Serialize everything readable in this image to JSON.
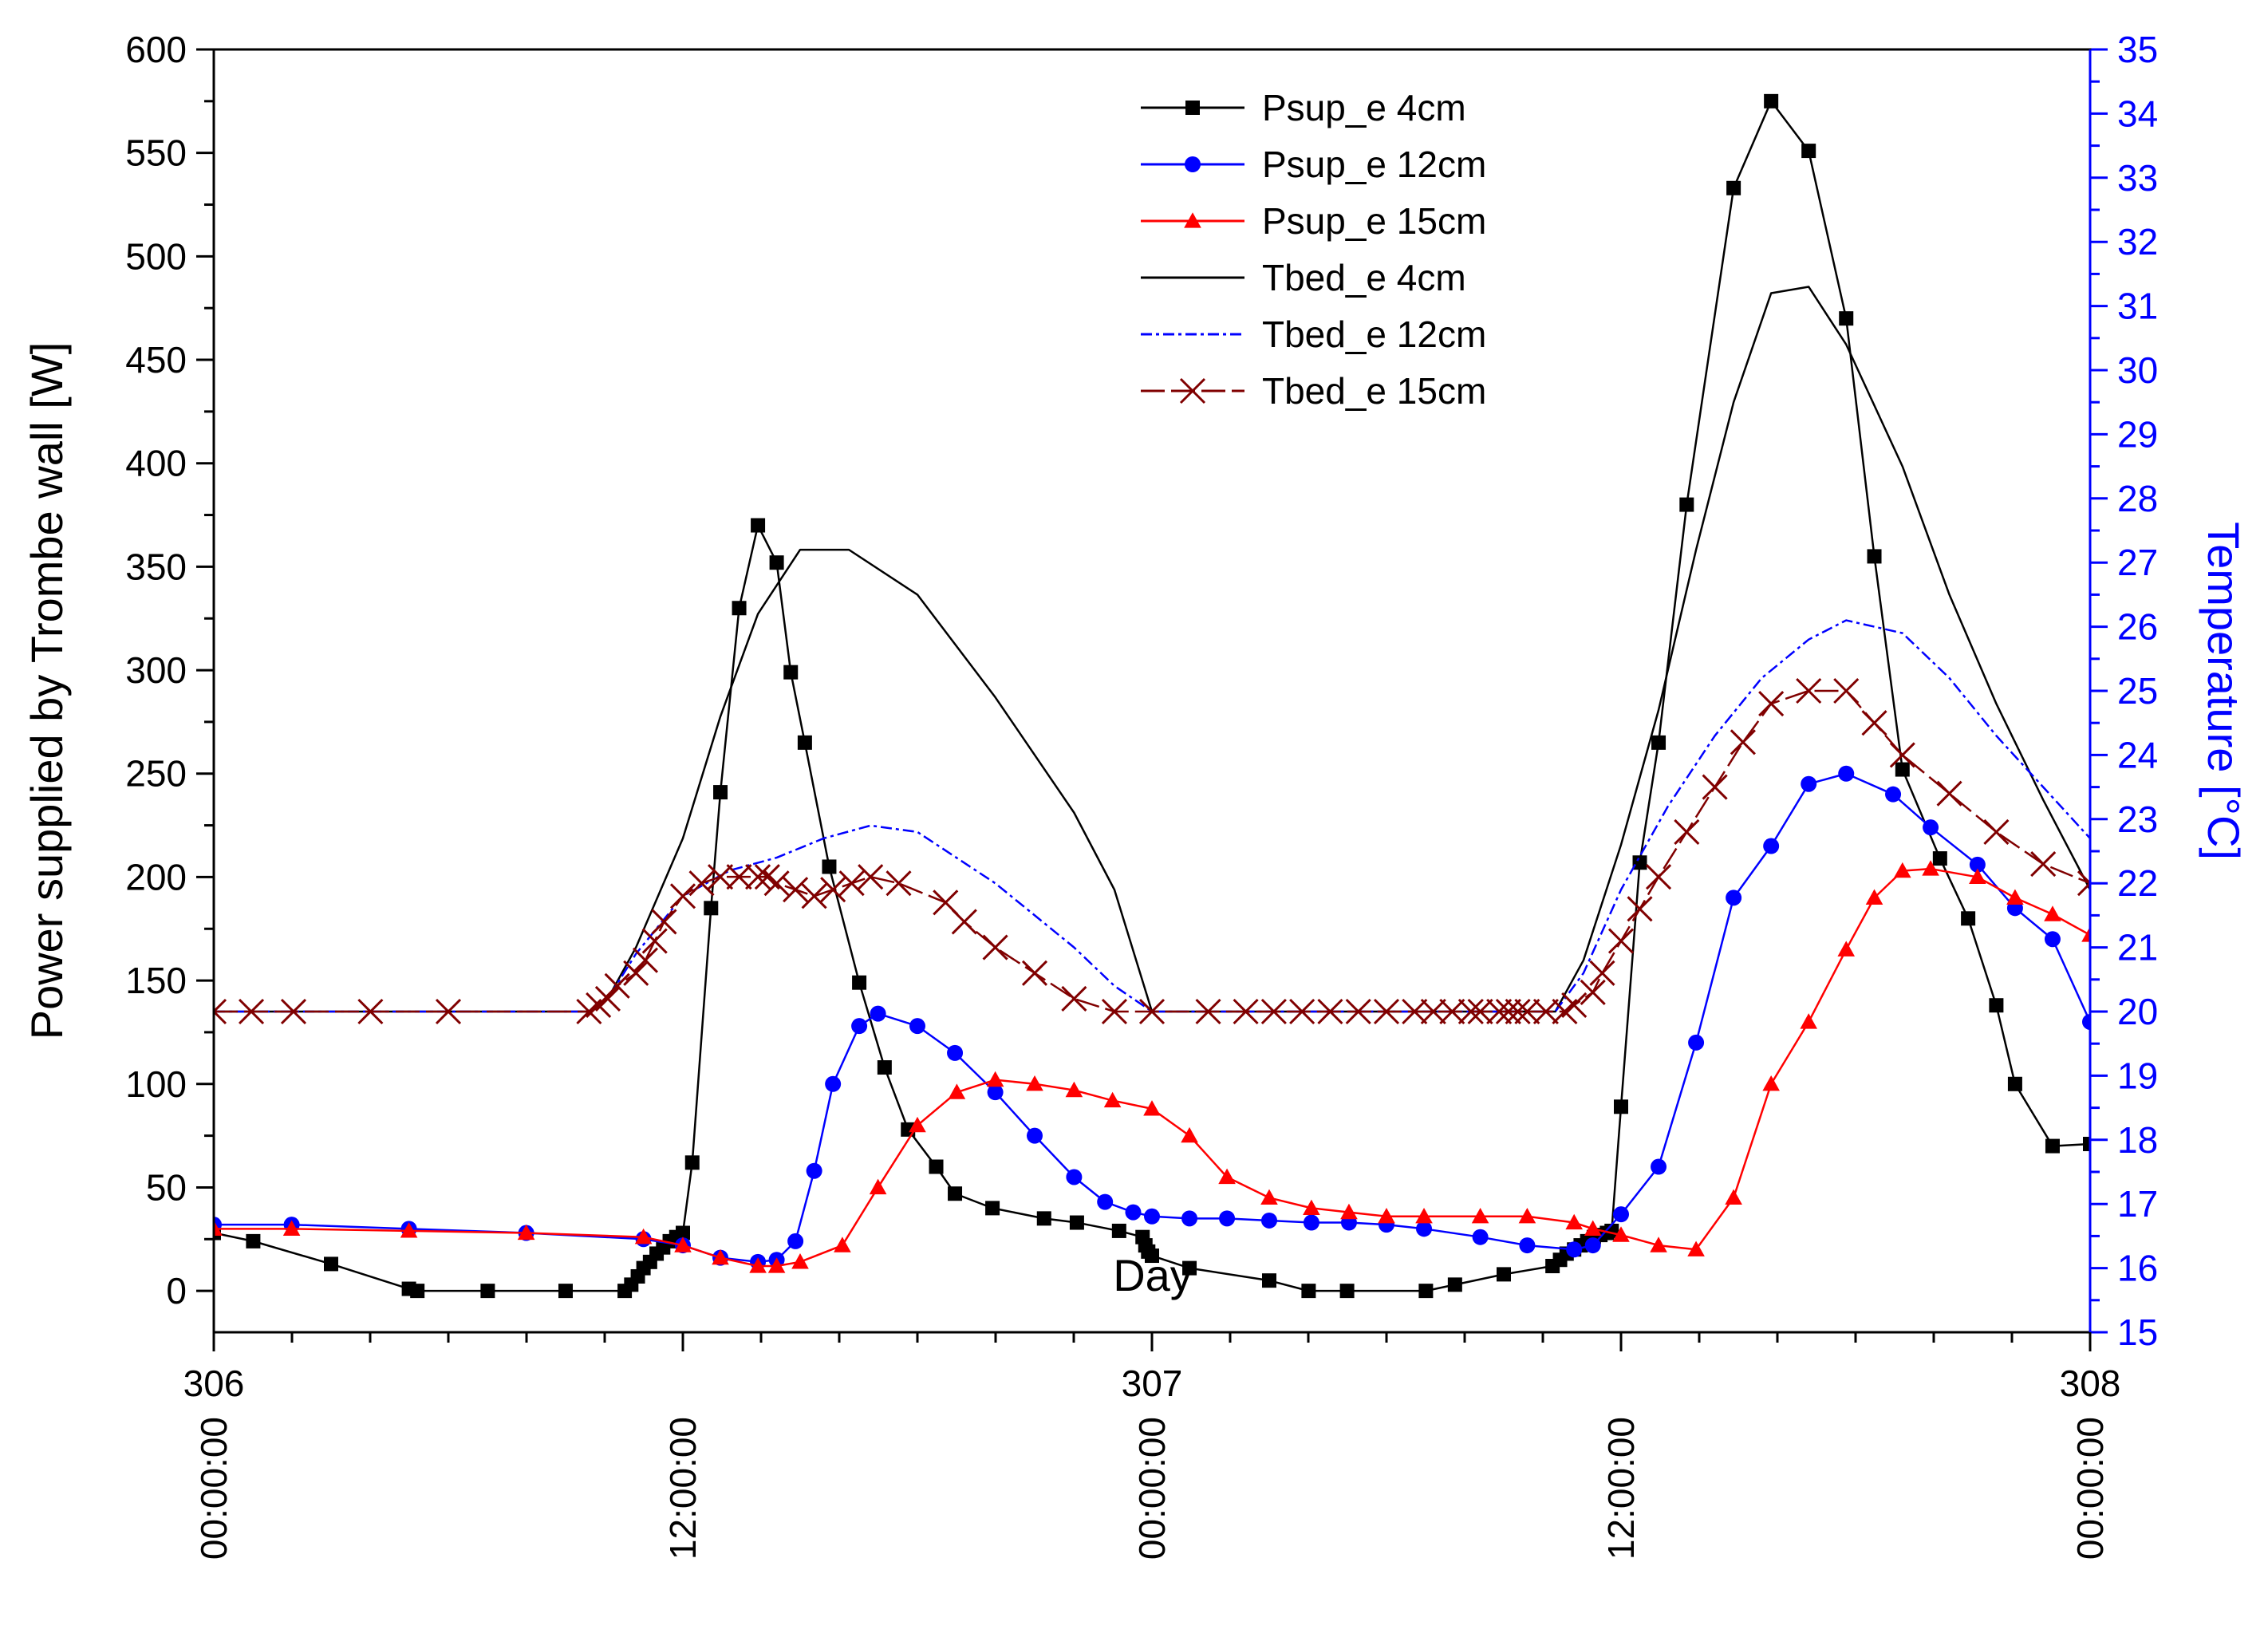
{
  "chart_data": {
    "type": "line",
    "xlabel": "Day",
    "ylabel": "Power supplied by Trombe wall [W]",
    "y2label": "Temperature [°C]",
    "xlim": [
      306,
      308
    ],
    "ylim": [
      -20,
      600
    ],
    "y2lim": [
      15,
      35
    ],
    "x_major_ticks": [
      {
        "value": 306,
        "day": "306",
        "time": "00:00:00"
      },
      {
        "value": 306.5,
        "day": "",
        "time": "12:00:00"
      },
      {
        "value": 307,
        "day": "307",
        "time": "00:00:00"
      },
      {
        "value": 307.5,
        "day": "",
        "time": "12:00:00"
      },
      {
        "value": 308,
        "day": "308",
        "time": "00:00:00"
      }
    ],
    "y_ticks": [
      0,
      50,
      100,
      150,
      200,
      250,
      300,
      350,
      400,
      450,
      500,
      550,
      600
    ],
    "y2_ticks": [
      15,
      16,
      17,
      18,
      19,
      20,
      21,
      22,
      23,
      24,
      25,
      26,
      27,
      28,
      29,
      30,
      31,
      32,
      33,
      34,
      35
    ],
    "colors": {
      "black": "#000000",
      "blue": "#0000ff",
      "red": "#ff0000",
      "darkred": "#800000",
      "axis2": "#0000ff"
    },
    "series": [
      {
        "name": "Psup_e 4cm",
        "axis": "left",
        "color": "#000000",
        "marker": "square",
        "dash": "",
        "x": [
          306.0,
          306.042,
          306.125,
          306.208,
          306.217,
          306.292,
          306.375,
          306.438,
          306.445,
          306.452,
          306.458,
          306.465,
          306.472,
          306.479,
          306.486,
          306.493,
          306.5,
          306.51,
          306.53,
          306.54,
          306.56,
          306.58,
          306.6,
          306.615,
          306.63,
          306.656,
          306.688,
          306.715,
          306.74,
          306.77,
          306.79,
          306.83,
          306.885,
          306.92,
          306.965,
          306.99,
          306.993,
          306.996,
          307.0,
          307.04,
          307.125,
          307.167,
          307.208,
          307.292,
          307.323,
          307.375,
          307.427,
          307.435,
          307.442,
          307.45,
          307.457,
          307.464,
          307.471,
          307.478,
          307.485,
          307.49,
          307.5,
          307.52,
          307.54,
          307.57,
          307.62,
          307.66,
          307.7,
          307.74,
          307.77,
          307.8,
          307.84,
          307.87,
          307.9,
          307.92,
          307.96,
          308.0
        ],
        "y": [
          28,
          24,
          13,
          1,
          0,
          0,
          0,
          0,
          3,
          7,
          11,
          14,
          18,
          21,
          24,
          26,
          28,
          62,
          185,
          241,
          330,
          370,
          352,
          299,
          265,
          205,
          149,
          108,
          78,
          60,
          47,
          40,
          35,
          33,
          29,
          26,
          22,
          19,
          17,
          11,
          5,
          0,
          0,
          0,
          3,
          8,
          12,
          15,
          18,
          20,
          22,
          24,
          26,
          27,
          28,
          29,
          89,
          207,
          265,
          380,
          533,
          575,
          551,
          470,
          355,
          252,
          209,
          180,
          138,
          100,
          70,
          71
        ]
      },
      {
        "name": "Psup_e 12cm",
        "axis": "left",
        "color": "#0000ff",
        "marker": "circle",
        "dash": "",
        "x": [
          306.0,
          306.083,
          306.208,
          306.333,
          306.458,
          306.5,
          306.54,
          306.58,
          306.6,
          306.62,
          306.64,
          306.66,
          306.688,
          306.708,
          306.75,
          306.79,
          306.833,
          306.875,
          306.917,
          306.95,
          306.98,
          307.0,
          307.04,
          307.08,
          307.125,
          307.17,
          307.21,
          307.25,
          307.29,
          307.35,
          307.4,
          307.45,
          307.47,
          307.5,
          307.54,
          307.58,
          307.62,
          307.66,
          307.7,
          307.74,
          307.79,
          307.83,
          307.88,
          307.92,
          307.96,
          308.0
        ],
        "y": [
          32,
          32,
          30,
          28,
          25,
          22,
          16,
          14,
          15,
          24,
          58,
          100,
          128,
          134,
          128,
          115,
          96,
          75,
          55,
          43,
          38,
          36,
          35,
          35,
          34,
          33,
          33,
          32,
          30,
          26,
          22,
          20,
          22,
          37,
          60,
          120,
          190,
          215,
          245,
          250,
          240,
          224,
          206,
          185,
          170,
          130
        ]
      },
      {
        "name": "Psup_e 15cm",
        "axis": "left",
        "color": "#ff0000",
        "marker": "triangle",
        "dash": "",
        "x": [
          306.0,
          306.083,
          306.208,
          306.333,
          306.458,
          306.5,
          306.54,
          306.58,
          306.6,
          306.625,
          306.67,
          306.708,
          306.75,
          306.792,
          306.833,
          306.875,
          306.917,
          306.958,
          307.0,
          307.04,
          307.08,
          307.125,
          307.17,
          307.21,
          307.25,
          307.29,
          307.35,
          307.4,
          307.45,
          307.47,
          307.5,
          307.54,
          307.58,
          307.62,
          307.66,
          307.7,
          307.74,
          307.77,
          307.8,
          307.83,
          307.88,
          307.92,
          307.96,
          308.0
        ],
        "y": [
          30,
          30,
          29,
          28,
          26,
          22,
          16,
          12,
          12,
          14,
          22,
          50,
          80,
          96,
          102,
          100,
          97,
          92,
          88,
          75,
          55,
          45,
          40,
          38,
          36,
          36,
          36,
          36,
          33,
          30,
          27,
          22,
          20,
          45,
          100,
          130,
          165,
          190,
          203,
          204,
          200,
          190,
          182,
          172
        ]
      },
      {
        "name": "Tbed_e 4cm",
        "axis": "right",
        "color": "#000000",
        "marker": "none",
        "dash": "",
        "x": [
          306.0,
          306.4,
          306.42,
          306.45,
          306.5,
          306.54,
          306.58,
          306.625,
          306.677,
          306.75,
          306.833,
          306.917,
          306.96,
          307.0,
          307.1,
          307.2,
          307.3,
          307.4,
          307.43,
          307.46,
          307.5,
          307.54,
          307.58,
          307.62,
          307.66,
          307.7,
          307.74,
          307.8,
          307.85,
          307.9,
          307.95,
          308.0
        ],
        "y": [
          20.0,
          20.0,
          20.2,
          21.0,
          22.7,
          24.6,
          26.2,
          27.2,
          27.2,
          26.5,
          24.9,
          23.1,
          21.9,
          20.0,
          20.0,
          20.0,
          20.0,
          20.0,
          20.0,
          20.8,
          22.6,
          24.7,
          27.2,
          29.5,
          31.2,
          31.3,
          30.4,
          28.5,
          26.5,
          24.8,
          23.3,
          21.9
        ]
      },
      {
        "name": "Tbed_e 12cm",
        "axis": "right",
        "color": "#0000ff",
        "marker": "none",
        "dash": "14,5,4,5",
        "x": [
          306.0,
          306.4,
          306.42,
          306.45,
          306.5,
          306.55,
          306.6,
          306.65,
          306.7,
          306.75,
          306.833,
          306.917,
          306.96,
          307.0,
          307.1,
          307.2,
          307.3,
          307.4,
          307.43,
          307.46,
          307.5,
          307.55,
          307.6,
          307.65,
          307.7,
          307.74,
          307.8,
          307.85,
          307.9,
          307.95,
          308.0
        ],
        "y": [
          20.0,
          20.0,
          20.2,
          20.9,
          21.8,
          22.2,
          22.4,
          22.7,
          22.9,
          22.8,
          22.0,
          21.0,
          20.4,
          20.0,
          20.0,
          20.0,
          20.0,
          20.0,
          20.0,
          20.6,
          21.9,
          23.2,
          24.3,
          25.2,
          25.8,
          26.1,
          25.9,
          25.2,
          24.3,
          23.5,
          22.7
        ]
      },
      {
        "name": "Tbed_e 15cm",
        "axis": "right",
        "color": "#800000",
        "marker": "x",
        "dash": "30,8",
        "x": [
          306.0,
          306.04,
          306.085,
          306.167,
          306.25,
          306.4,
          306.41,
          306.42,
          306.43,
          306.45,
          306.46,
          306.47,
          306.48,
          306.5,
          306.52,
          306.54,
          306.56,
          306.58,
          306.59,
          306.6,
          306.62,
          306.64,
          306.66,
          306.68,
          306.7,
          306.73,
          306.78,
          306.8,
          306.833,
          306.875,
          306.917,
          306.96,
          307.0,
          307.06,
          307.1,
          307.13,
          307.16,
          307.19,
          307.22,
          307.25,
          307.28,
          307.3,
          307.32,
          307.34,
          307.35,
          307.37,
          307.38,
          307.39,
          307.4,
          307.42,
          307.44,
          307.45,
          307.47,
          307.48,
          307.5,
          307.52,
          307.54,
          307.57,
          307.6,
          307.63,
          307.66,
          307.7,
          307.74,
          307.77,
          307.8,
          307.85,
          307.9,
          307.95,
          308.0
        ],
        "y": [
          20.0,
          20.0,
          20.0,
          20.0,
          20.0,
          20.0,
          20.1,
          20.2,
          20.4,
          20.6,
          20.8,
          21.1,
          21.4,
          21.8,
          22.0,
          22.1,
          22.1,
          22.1,
          22.1,
          22.0,
          21.9,
          21.8,
          21.9,
          22.0,
          22.1,
          22.0,
          21.7,
          21.4,
          21.0,
          20.6,
          20.2,
          20.0,
          20.0,
          20.0,
          20.0,
          20.0,
          20.0,
          20.0,
          20.0,
          20.0,
          20.0,
          20.0,
          20.0,
          20.0,
          20.0,
          20.0,
          20.0,
          20.0,
          20.0,
          20.0,
          20.0,
          20.1,
          20.3,
          20.6,
          21.1,
          21.6,
          22.1,
          22.8,
          23.5,
          24.2,
          24.8,
          25.0,
          25.0,
          24.5,
          24.0,
          23.4,
          22.8,
          22.3,
          22.0
        ]
      }
    ]
  }
}
